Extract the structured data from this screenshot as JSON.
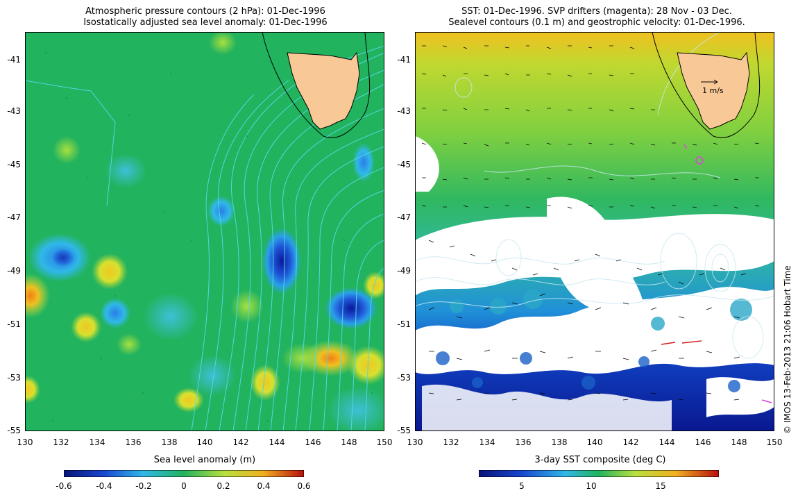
{
  "left_panel": {
    "title_line1": "Atmospheric pressure contours (2 hPa): 01-Dec-1996",
    "title_line2": "Isostatically adjusted sea level anomaly: 01-Dec-1996",
    "colorbar_label": "Sea level anomaly (m)",
    "colorbar_ticks": [
      "-0.6",
      "-0.4",
      "-0.2",
      "0",
      "0.2",
      "0.4",
      "0.6"
    ]
  },
  "right_panel": {
    "title_line1": "SST: 01-Dec-1996. SVP drifters (magenta): 28 Nov - 03 Dec.",
    "title_line2": "Sealevel contours (0.1 m) and geostrophic velocity: 01-Dec-1996.",
    "colorbar_label": "3-day SST composite (deg C)",
    "colorbar_ticks": [
      "5",
      "10",
      "15"
    ],
    "velocity_key": "1 m/s"
  },
  "axes": {
    "lon_ticks": [
      "130",
      "132",
      "134",
      "136",
      "138",
      "140",
      "142",
      "144",
      "146",
      "148",
      "150"
    ],
    "lat_ticks": [
      "-41",
      "-43",
      "-45",
      "-47",
      "-49",
      "-51",
      "-53",
      "-55"
    ]
  },
  "credit": "© IMOS 13-Feb-2013 21:06 Hobart Time",
  "colors": {
    "land": "#f8c896",
    "pressure_contour": "#50d8e0",
    "sea_green": "#1fb35a",
    "missing_data": "#ffffff"
  },
  "map_data": {
    "lon_range": [
      130,
      150
    ],
    "lat_range": [
      -55,
      -40
    ]
  }
}
